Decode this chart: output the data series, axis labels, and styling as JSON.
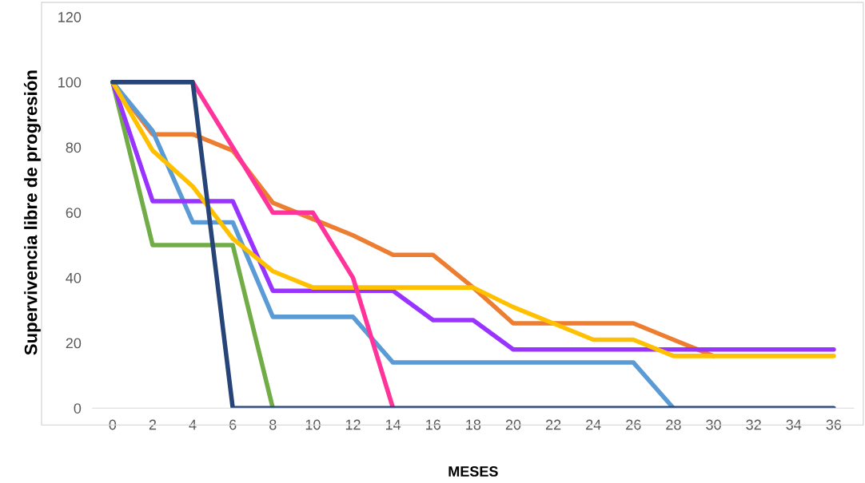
{
  "chart_data": {
    "type": "line",
    "xlabel": "MESES",
    "ylabel": "Supervivencia libre de progresión",
    "categories": [
      "0",
      "2",
      "4",
      "6",
      "8",
      "10",
      "12",
      "14",
      "16",
      "18",
      "20",
      "22",
      "24",
      "26",
      "28",
      "30",
      "32",
      "34",
      "36"
    ],
    "ylim": [
      0,
      120
    ],
    "yticks": [
      0,
      20,
      40,
      60,
      80,
      100,
      120
    ],
    "grid": false,
    "marker": "none",
    "line_style": "solid",
    "series": [
      {
        "color": "#ed7d31",
        "values": [
          100,
          84,
          84,
          79,
          63,
          58,
          53,
          47,
          47,
          37,
          26,
          26,
          26,
          26,
          21,
          16,
          null,
          null,
          null
        ]
      },
      {
        "color": "#70ad47",
        "values": [
          100,
          50,
          50,
          50,
          0,
          null,
          null,
          null,
          null,
          null,
          null,
          null,
          null,
          null,
          null,
          null,
          null,
          null,
          null
        ]
      },
      {
        "color": "#5b9bd5",
        "values": [
          100,
          85,
          57,
          57,
          28,
          28,
          28,
          14,
          14,
          14,
          14,
          14,
          14,
          14,
          0,
          null,
          null,
          null,
          null
        ]
      },
      {
        "color": "#9933ff",
        "values": [
          100,
          63.5,
          63.5,
          63.5,
          36,
          36,
          36,
          36,
          27,
          27,
          18,
          18,
          18,
          18,
          18,
          18,
          18,
          18,
          18
        ]
      },
      {
        "color": "#ffc000",
        "values": [
          100,
          79,
          68,
          52,
          42,
          37,
          37,
          37,
          37,
          37,
          31,
          26,
          21,
          21,
          16,
          16,
          16,
          16,
          16
        ]
      },
      {
        "color": "#ff3399",
        "values": [
          null,
          null,
          100,
          80,
          60,
          60,
          40,
          0,
          null,
          null,
          null,
          null,
          null,
          null,
          null,
          null,
          null,
          null,
          null
        ]
      },
      {
        "color": "#264478",
        "values": [
          100,
          100,
          100,
          0,
          0,
          0,
          0,
          0,
          0,
          0,
          0,
          0,
          0,
          0,
          0,
          0,
          0,
          0,
          0
        ]
      }
    ]
  }
}
